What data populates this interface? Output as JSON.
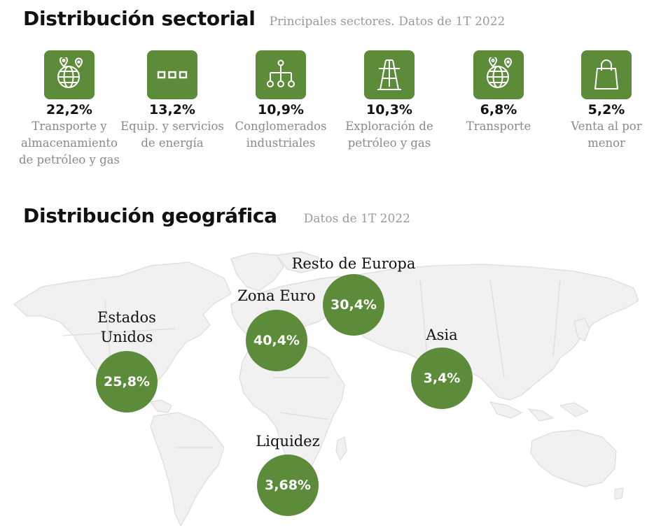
{
  "sector_section": {
    "title": "Distribución sectorial",
    "subtitle": "Principales sectores. Datos de 1T 2022"
  },
  "sectors": [
    {
      "icon": "globe-pin-icon",
      "percent": "22,2%",
      "percent_value": 22.2,
      "label": "Transporte y almacenamiento de petróleo y gas"
    },
    {
      "icon": "three-squares-icon",
      "percent": "13,2%",
      "percent_value": 13.2,
      "label": "Equip. y servicios de energía"
    },
    {
      "icon": "hierarchy-icon",
      "percent": "10,9%",
      "percent_value": 10.9,
      "label": "Conglomerados industriales"
    },
    {
      "icon": "oil-derrick-icon",
      "percent": "10,3%",
      "percent_value": 10.3,
      "label": "Exploración de petróleo y gas"
    },
    {
      "icon": "globe-pin-icon",
      "percent": "6,8%",
      "percent_value": 6.8,
      "label": "Transporte"
    },
    {
      "icon": "shopping-bag-icon",
      "percent": "5,2%",
      "percent_value": 5.2,
      "label": "Venta al por menor"
    }
  ],
  "geo_section": {
    "title": "Distribución geográfica",
    "subtitle": "Datos de 1T 2022"
  },
  "regions": [
    {
      "name": "Estados Unidos",
      "line1": "Estados",
      "line2": "Unidos",
      "value": "25,8%",
      "percent_value": 25.8
    },
    {
      "name": "Zona Euro",
      "line1": "Zona Euro",
      "value": "40,4%",
      "percent_value": 40.4
    },
    {
      "name": "Resto de Europa",
      "line1": "Resto de Europa",
      "value": "30,4%",
      "percent_value": 30.4
    },
    {
      "name": "Asia",
      "line1": "Asia",
      "value": "3,4%",
      "percent_value": 3.4
    },
    {
      "name": "Liquidez",
      "line1": "Liquidez",
      "value": "3,68%",
      "percent_value": 3.68
    }
  ],
  "colors": {
    "accent_green": "#5c8b3a",
    "map_land": "#f1f1f1",
    "map_border": "#dcdcdc",
    "muted_text": "#8a8a8a"
  }
}
